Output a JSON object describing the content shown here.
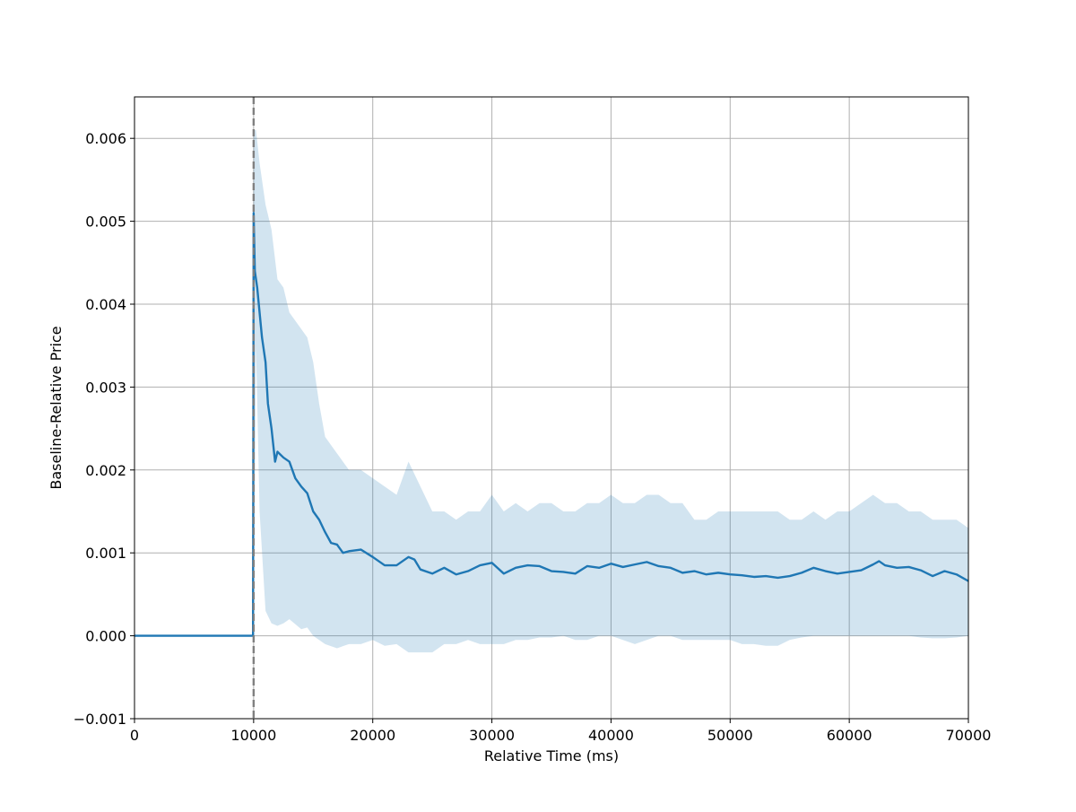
{
  "chart_data": {
    "type": "line",
    "title": "",
    "xlabel": "Relative Time (ms)",
    "ylabel": "Baseline-Relative Price",
    "xlim": [
      0,
      70000
    ],
    "ylim": [
      -0.001,
      0.0065
    ],
    "x_ticks": [
      0,
      10000,
      20000,
      30000,
      40000,
      50000,
      60000,
      70000
    ],
    "x_tick_labels": [
      "0",
      "10000",
      "20000",
      "30000",
      "40000",
      "50000",
      "60000",
      "70000"
    ],
    "y_ticks": [
      -0.001,
      0.0,
      0.001,
      0.002,
      0.003,
      0.004,
      0.005,
      0.006
    ],
    "y_tick_labels": [
      "−0.001",
      "0.000",
      "0.001",
      "0.002",
      "0.003",
      "0.004",
      "0.005",
      "0.006"
    ],
    "grid": true,
    "legend": "none",
    "event_marker_x": 10000,
    "colors": {
      "line": "#1f77b4",
      "band": "#1f77b4",
      "band_opacity": 0.2,
      "event_line": "#808080",
      "grid": "#b0b0b0"
    },
    "series": [
      {
        "values": [
          [
            0,
            0.0
          ],
          [
            9900,
            0.0
          ],
          [
            9950,
            0.0
          ],
          [
            10000,
            0.0051
          ],
          [
            10100,
            0.0044
          ],
          [
            10300,
            0.0042
          ],
          [
            10500,
            0.0039
          ],
          [
            10700,
            0.0036
          ],
          [
            11000,
            0.0033
          ],
          [
            11200,
            0.0028
          ],
          [
            11500,
            0.0025
          ],
          [
            11800,
            0.0021
          ],
          [
            12000,
            0.00222
          ],
          [
            12500,
            0.00215
          ],
          [
            13000,
            0.0021
          ],
          [
            13500,
            0.0019
          ],
          [
            14000,
            0.0018
          ],
          [
            14500,
            0.00172
          ],
          [
            15000,
            0.0015
          ],
          [
            15500,
            0.0014
          ],
          [
            16000,
            0.00125
          ],
          [
            16500,
            0.00112
          ],
          [
            17000,
            0.0011
          ],
          [
            17500,
            0.001
          ],
          [
            18000,
            0.00102
          ],
          [
            19000,
            0.00104
          ],
          [
            20000,
            0.00095
          ],
          [
            21000,
            0.00085
          ],
          [
            22000,
            0.00085
          ],
          [
            23000,
            0.00095
          ],
          [
            23500,
            0.00092
          ],
          [
            24000,
            0.0008
          ],
          [
            25000,
            0.00075
          ],
          [
            26000,
            0.00082
          ],
          [
            27000,
            0.00074
          ],
          [
            28000,
            0.00078
          ],
          [
            29000,
            0.00085
          ],
          [
            30000,
            0.00088
          ],
          [
            31000,
            0.00075
          ],
          [
            32000,
            0.00082
          ],
          [
            33000,
            0.00085
          ],
          [
            34000,
            0.00084
          ],
          [
            35000,
            0.00078
          ],
          [
            36000,
            0.00077
          ],
          [
            37000,
            0.00075
          ],
          [
            38000,
            0.00084
          ],
          [
            39000,
            0.00082
          ],
          [
            40000,
            0.00087
          ],
          [
            41000,
            0.00083
          ],
          [
            42000,
            0.00086
          ],
          [
            43000,
            0.00089
          ],
          [
            44000,
            0.00084
          ],
          [
            45000,
            0.00082
          ],
          [
            46000,
            0.00076
          ],
          [
            47000,
            0.00078
          ],
          [
            48000,
            0.00074
          ],
          [
            49000,
            0.00076
          ],
          [
            50000,
            0.00074
          ],
          [
            51000,
            0.00073
          ],
          [
            52000,
            0.00071
          ],
          [
            53000,
            0.00072
          ],
          [
            54000,
            0.0007
          ],
          [
            55000,
            0.00072
          ],
          [
            56000,
            0.00076
          ],
          [
            57000,
            0.00082
          ],
          [
            58000,
            0.00078
          ],
          [
            59000,
            0.00075
          ],
          [
            60000,
            0.00077
          ],
          [
            61000,
            0.00079
          ],
          [
            62000,
            0.00086
          ],
          [
            62500,
            0.0009
          ],
          [
            63000,
            0.00085
          ],
          [
            64000,
            0.00082
          ],
          [
            65000,
            0.00083
          ],
          [
            66000,
            0.00079
          ],
          [
            67000,
            0.00072
          ],
          [
            68000,
            0.00078
          ],
          [
            69000,
            0.00074
          ],
          [
            70000,
            0.00066
          ]
        ],
        "band": [
          [
            0,
            0.0,
            0.0
          ],
          [
            9900,
            0.0,
            0.0
          ],
          [
            10000,
            0.0,
            0.0061
          ],
          [
            10200,
            0.0035,
            0.0061
          ],
          [
            10500,
            0.0015,
            0.0057
          ],
          [
            11000,
            0.0003,
            0.0052
          ],
          [
            11500,
            0.00015,
            0.0049
          ],
          [
            12000,
            0.00012,
            0.0043
          ],
          [
            12500,
            0.00015,
            0.0042
          ],
          [
            13000,
            0.0002,
            0.0039
          ],
          [
            14000,
            8e-05,
            0.0037
          ],
          [
            14500,
            0.0001,
            0.0036
          ],
          [
            15000,
            0.0,
            0.0033
          ],
          [
            15500,
            -5e-05,
            0.0028
          ],
          [
            16000,
            -0.0001,
            0.0024
          ],
          [
            17000,
            -0.00015,
            0.0022
          ],
          [
            18000,
            -0.0001,
            0.002
          ],
          [
            19000,
            -0.0001,
            0.002
          ],
          [
            20000,
            -5e-05,
            0.0019
          ],
          [
            21000,
            -0.00012,
            0.0018
          ],
          [
            22000,
            -0.0001,
            0.0017
          ],
          [
            23000,
            -0.0002,
            0.0021
          ],
          [
            24000,
            -0.0002,
            0.0018
          ],
          [
            25000,
            -0.0002,
            0.0015
          ],
          [
            26000,
            -0.0001,
            0.0015
          ],
          [
            27000,
            -0.0001,
            0.0014
          ],
          [
            28000,
            -5e-05,
            0.0015
          ],
          [
            29000,
            -0.0001,
            0.0015
          ],
          [
            30000,
            -0.0001,
            0.0017
          ],
          [
            31000,
            -0.0001,
            0.0015
          ],
          [
            32000,
            -5e-05,
            0.0016
          ],
          [
            33000,
            -5e-05,
            0.0015
          ],
          [
            34000,
            -2e-05,
            0.0016
          ],
          [
            35000,
            -2e-05,
            0.0016
          ],
          [
            36000,
            0.0,
            0.0015
          ],
          [
            37000,
            -5e-05,
            0.0015
          ],
          [
            38000,
            -5e-05,
            0.0016
          ],
          [
            39000,
            0.0,
            0.0016
          ],
          [
            40000,
            0.0,
            0.0017
          ],
          [
            41000,
            -5e-05,
            0.0016
          ],
          [
            42000,
            -0.0001,
            0.0016
          ],
          [
            43000,
            -5e-05,
            0.0017
          ],
          [
            44000,
            0.0,
            0.0017
          ],
          [
            45000,
            0.0,
            0.0016
          ],
          [
            46000,
            -5e-05,
            0.0016
          ],
          [
            47000,
            -5e-05,
            0.0014
          ],
          [
            48000,
            -5e-05,
            0.0014
          ],
          [
            49000,
            -5e-05,
            0.0015
          ],
          [
            50000,
            -5e-05,
            0.0015
          ],
          [
            51000,
            -0.0001,
            0.0015
          ],
          [
            52000,
            -0.0001,
            0.0015
          ],
          [
            53000,
            -0.00012,
            0.0015
          ],
          [
            54000,
            -0.00012,
            0.0015
          ],
          [
            55000,
            -5e-05,
            0.0014
          ],
          [
            56000,
            -2e-05,
            0.0014
          ],
          [
            57000,
            0.0,
            0.0015
          ],
          [
            58000,
            0.0,
            0.0014
          ],
          [
            59000,
            0.0,
            0.0015
          ],
          [
            60000,
            0.0,
            0.0015
          ],
          [
            61000,
            0.0,
            0.0016
          ],
          [
            62000,
            0.0,
            0.0017
          ],
          [
            63000,
            0.0,
            0.0016
          ],
          [
            64000,
            0.0,
            0.0016
          ],
          [
            65000,
            0.0,
            0.0015
          ],
          [
            66000,
            -2e-05,
            0.0015
          ],
          [
            67000,
            -3e-05,
            0.0014
          ],
          [
            68000,
            -3e-05,
            0.0014
          ],
          [
            69000,
            -2e-05,
            0.0014
          ],
          [
            70000,
            0.0,
            0.0013
          ]
        ]
      }
    ]
  }
}
